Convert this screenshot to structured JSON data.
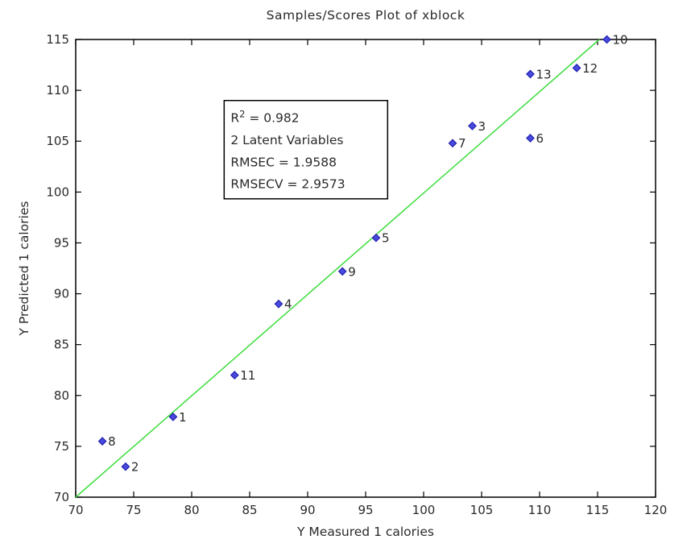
{
  "figure": {
    "background": "#ffffff",
    "axis_color": "#000000",
    "text_color": "#2a2a2a"
  },
  "chart_data": {
    "type": "scatter",
    "title": "Samples/Scores Plot of xblock",
    "xlabel": "Y Measured 1 calories",
    "ylabel": "Y Predicted 1 calories",
    "xlim": [
      70,
      120
    ],
    "ylim": [
      70,
      115
    ],
    "xticks": [
      70,
      75,
      80,
      85,
      90,
      95,
      100,
      105,
      110,
      115,
      120
    ],
    "yticks": [
      70,
      75,
      80,
      85,
      90,
      95,
      100,
      105,
      110,
      115
    ],
    "grid": false,
    "legend": null,
    "points": [
      {
        "label": "1",
        "x": 78.4,
        "y": 77.9
      },
      {
        "label": "2",
        "x": 74.3,
        "y": 73.0
      },
      {
        "label": "3",
        "x": 104.2,
        "y": 106.5
      },
      {
        "label": "4",
        "x": 87.5,
        "y": 89.0
      },
      {
        "label": "5",
        "x": 95.9,
        "y": 95.5
      },
      {
        "label": "6",
        "x": 109.2,
        "y": 105.3
      },
      {
        "label": "7",
        "x": 102.5,
        "y": 104.8
      },
      {
        "label": "8",
        "x": 72.3,
        "y": 75.5
      },
      {
        "label": "9",
        "x": 93.0,
        "y": 92.2
      },
      {
        "label": "10",
        "x": 115.8,
        "y": 115.0
      },
      {
        "label": "11",
        "x": 83.7,
        "y": 82.0
      },
      {
        "label": "12",
        "x": 113.2,
        "y": 112.2
      },
      {
        "label": "13",
        "x": 109.2,
        "y": 111.6
      }
    ],
    "marker": {
      "shape": "diamond",
      "fill": "#4a4ae0",
      "stroke": "#2424b0",
      "size": 4.5
    },
    "fit_line": {
      "x1": 70,
      "y1": 70,
      "x2": 115.15,
      "y2": 115,
      "color": "#3ddd3d",
      "width": 1.5
    },
    "annotation": {
      "x": 82.8,
      "y": 109.0,
      "lines": [
        "R^2 = 0.982",
        "2 Latent Variables",
        "RMSEC = 1.9588",
        "RMSECV = 2.9573"
      ]
    }
  }
}
